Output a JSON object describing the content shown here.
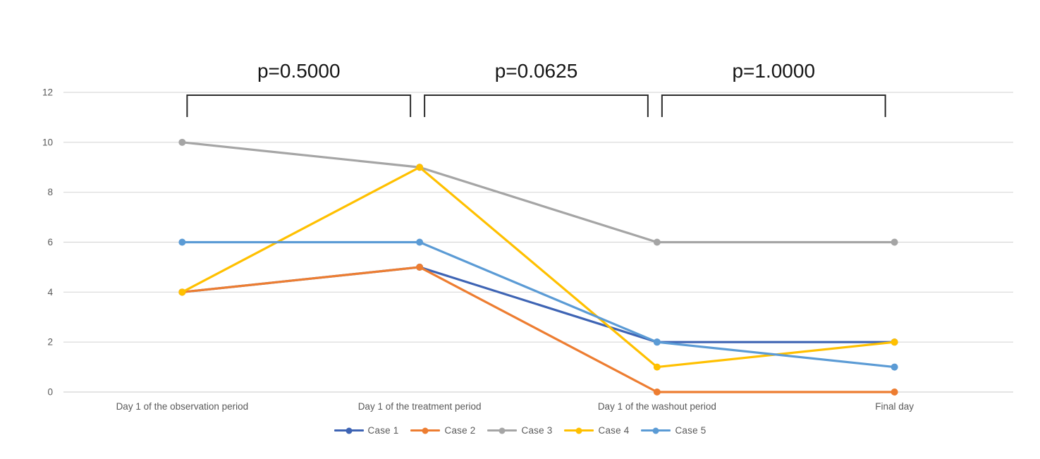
{
  "chart_data": {
    "type": "line",
    "title": "",
    "xlabel": "",
    "ylabel": "",
    "categories": [
      "Day 1 of the observation period",
      "Day 1 of the treatment period",
      "Day 1 of the washout period",
      "Final day"
    ],
    "series": [
      {
        "name": "Case 1",
        "color": "#3E64B4",
        "values": [
          4,
          5,
          2,
          2
        ]
      },
      {
        "name": "Case 2",
        "color": "#ED7D31",
        "values": [
          4,
          5,
          0,
          0
        ]
      },
      {
        "name": "Case 3",
        "color": "#A5A5A5",
        "values": [
          10,
          9,
          6,
          6
        ]
      },
      {
        "name": "Case 4",
        "color": "#FFC000",
        "values": [
          4,
          9,
          1,
          2
        ]
      },
      {
        "name": "Case 5",
        "color": "#5B9BD5",
        "values": [
          6,
          6,
          2,
          1
        ]
      }
    ],
    "ylim": [
      0,
      12
    ],
    "yticks": [
      0,
      2,
      4,
      6,
      8,
      10,
      12
    ],
    "grid": "horizontal-only",
    "legend_position": "bottom",
    "annotations": [
      {
        "label": "p=0.5000",
        "from_category": 0,
        "to_category": 1
      },
      {
        "label": "p=0.0625",
        "from_category": 1,
        "to_category": 2
      },
      {
        "label": "p=1.0000",
        "from_category": 2,
        "to_category": 3
      }
    ],
    "colors": {
      "background": "#ffffff",
      "gridline": "#D9D9D9",
      "axis_line": "#D3D3D3",
      "tick_text": "#595959",
      "bracket": "#2b2b2b",
      "annotation_text": "#161616"
    }
  }
}
